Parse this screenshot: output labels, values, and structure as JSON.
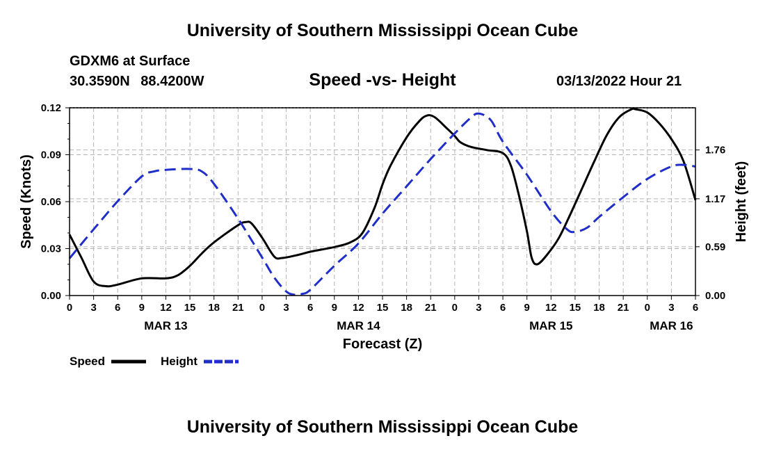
{
  "page": {
    "title": "University of Southern Mississippi Ocean Cube",
    "footer_title": "University of Southern Mississippi Ocean Cube",
    "station": "GDXM6 at Surface",
    "location": "30.3590N 88.4200W",
    "date": "03/13/2022 Hour 21"
  },
  "chart_data": {
    "type": "line",
    "title": "Speed -vs- Height",
    "xlabel": "Forecast (Z)",
    "ylabel": "Speed (Knots)",
    "y2label": "Height (feet)",
    "x_hours_range": [
      0,
      78
    ],
    "ylim": [
      0,
      0.12
    ],
    "y2lim": [
      0,
      2.27
    ],
    "xticks": [
      {
        "h": 0,
        "label": "0"
      },
      {
        "h": 3,
        "label": "3"
      },
      {
        "h": 6,
        "label": "6"
      },
      {
        "h": 9,
        "label": "9"
      },
      {
        "h": 12,
        "label": "12"
      },
      {
        "h": 15,
        "label": "15"
      },
      {
        "h": 18,
        "label": "18"
      },
      {
        "h": 21,
        "label": "21"
      },
      {
        "h": 24,
        "label": "0"
      },
      {
        "h": 27,
        "label": "3"
      },
      {
        "h": 30,
        "label": "6"
      },
      {
        "h": 33,
        "label": "9"
      },
      {
        "h": 36,
        "label": "12"
      },
      {
        "h": 39,
        "label": "15"
      },
      {
        "h": 42,
        "label": "18"
      },
      {
        "h": 45,
        "label": "21"
      },
      {
        "h": 48,
        "label": "0"
      },
      {
        "h": 51,
        "label": "3"
      },
      {
        "h": 54,
        "label": "6"
      },
      {
        "h": 57,
        "label": "9"
      },
      {
        "h": 60,
        "label": "12"
      },
      {
        "h": 63,
        "label": "15"
      },
      {
        "h": 66,
        "label": "18"
      },
      {
        "h": 69,
        "label": "21"
      },
      {
        "h": 72,
        "label": "0"
      },
      {
        "h": 75,
        "label": "3"
      },
      {
        "h": 78,
        "label": "6"
      }
    ],
    "date_labels": [
      {
        "h": 12,
        "label": "MAR 13"
      },
      {
        "h": 36,
        "label": "MAR 14"
      },
      {
        "h": 60,
        "label": "MAR 15"
      },
      {
        "h": 75,
        "label": "MAR 16"
      }
    ],
    "yticks": [
      {
        "v": 0.0,
        "label": "0.00"
      },
      {
        "v": 0.03,
        "label": "0.03"
      },
      {
        "v": 0.06,
        "label": "0.06"
      },
      {
        "v": 0.09,
        "label": "0.09"
      },
      {
        "v": 0.12,
        "label": "0.12"
      }
    ],
    "y2ticks": [
      {
        "v": 0.0,
        "label": "0.00"
      },
      {
        "v": 0.59,
        "label": "0.59"
      },
      {
        "v": 1.17,
        "label": "1.17"
      },
      {
        "v": 1.76,
        "label": "1.76"
      }
    ],
    "series": [
      {
        "name": "Speed",
        "axis": "left",
        "color": "#000000",
        "dash": "solid",
        "points": [
          [
            0,
            0.039
          ],
          [
            1.5,
            0.024
          ],
          [
            3,
            0.009
          ],
          [
            4.5,
            0.006
          ],
          [
            6,
            0.007
          ],
          [
            9,
            0.011
          ],
          [
            12,
            0.011
          ],
          [
            13.5,
            0.013
          ],
          [
            15,
            0.019
          ],
          [
            16.5,
            0.027
          ],
          [
            18,
            0.034
          ],
          [
            21,
            0.045
          ],
          [
            22,
            0.047
          ],
          [
            22.7,
            0.046
          ],
          [
            24,
            0.037
          ],
          [
            25.5,
            0.025
          ],
          [
            26.5,
            0.024
          ],
          [
            28.5,
            0.026
          ],
          [
            30,
            0.028
          ],
          [
            33,
            0.031
          ],
          [
            35,
            0.034
          ],
          [
            36.5,
            0.04
          ],
          [
            38,
            0.056
          ],
          [
            39,
            0.071
          ],
          [
            40,
            0.083
          ],
          [
            42,
            0.101
          ],
          [
            43.5,
            0.111
          ],
          [
            44.5,
            0.115
          ],
          [
            45.5,
            0.114
          ],
          [
            47,
            0.107
          ],
          [
            48,
            0.102
          ],
          [
            48.7,
            0.098
          ],
          [
            50,
            0.095
          ],
          [
            52,
            0.093
          ],
          [
            54,
            0.091
          ],
          [
            55,
            0.083
          ],
          [
            56,
            0.064
          ],
          [
            57,
            0.041
          ],
          [
            57.6,
            0.024
          ],
          [
            58.3,
            0.02
          ],
          [
            59.5,
            0.026
          ],
          [
            61,
            0.037
          ],
          [
            62.5,
            0.053
          ],
          [
            64,
            0.07
          ],
          [
            65.5,
            0.087
          ],
          [
            67,
            0.103
          ],
          [
            68.5,
            0.114
          ],
          [
            70,
            0.119
          ],
          [
            70.6,
            0.119
          ],
          [
            72,
            0.117
          ],
          [
            73.5,
            0.11
          ],
          [
            75,
            0.1
          ],
          [
            76.5,
            0.086
          ],
          [
            78,
            0.061
          ]
        ]
      },
      {
        "name": "Height",
        "axis": "right",
        "color": "#1f2ec8",
        "dash": "dashed",
        "points": [
          [
            0,
            0.45
          ],
          [
            3,
            0.8
          ],
          [
            6,
            1.14
          ],
          [
            9,
            1.44
          ],
          [
            10.5,
            1.5
          ],
          [
            12,
            1.52
          ],
          [
            15,
            1.53
          ],
          [
            16.5,
            1.5
          ],
          [
            18,
            1.35
          ],
          [
            21,
            0.93
          ],
          [
            24,
            0.46
          ],
          [
            25.5,
            0.22
          ],
          [
            27,
            0.05
          ],
          [
            28,
            0.01
          ],
          [
            29,
            0.02
          ],
          [
            30,
            0.07
          ],
          [
            33,
            0.36
          ],
          [
            36,
            0.63
          ],
          [
            39,
            0.99
          ],
          [
            42,
            1.32
          ],
          [
            45,
            1.65
          ],
          [
            48,
            1.96
          ],
          [
            50,
            2.15
          ],
          [
            51,
            2.2
          ],
          [
            52.5,
            2.12
          ],
          [
            54,
            1.86
          ],
          [
            57,
            1.46
          ],
          [
            60,
            1.02
          ],
          [
            62,
            0.8
          ],
          [
            63,
            0.77
          ],
          [
            64.5,
            0.82
          ],
          [
            66,
            0.95
          ],
          [
            69,
            1.19
          ],
          [
            72,
            1.41
          ],
          [
            75,
            1.56
          ],
          [
            76.5,
            1.58
          ],
          [
            78,
            1.56
          ]
        ]
      }
    ],
    "legend": {
      "position": "bottom-left",
      "items": [
        "Speed",
        "Height"
      ]
    }
  }
}
